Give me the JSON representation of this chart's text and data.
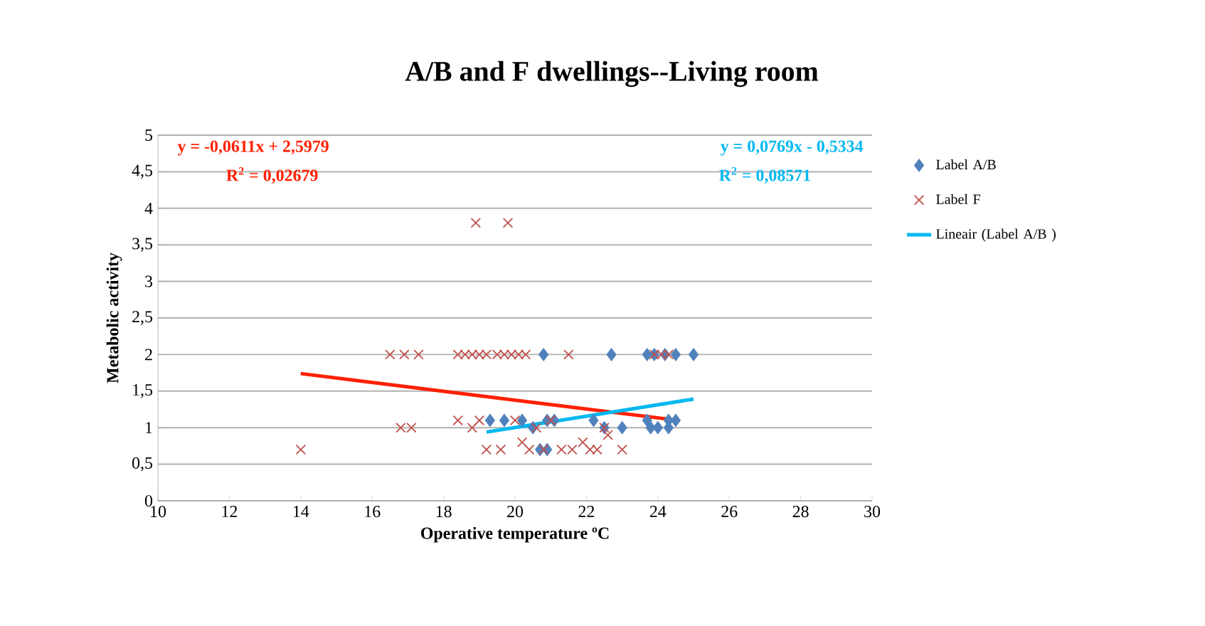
{
  "chart_data": {
    "type": "scatter",
    "title": "A/B and F dwellings--Living room",
    "xlabel": "Operative temperature ºC",
    "ylabel": "Metabolic activity",
    "xlim": [
      10,
      30
    ],
    "xticks": [
      10,
      12,
      14,
      16,
      18,
      20,
      22,
      24,
      26,
      28,
      30
    ],
    "ylim": [
      0,
      5
    ],
    "yticks": [
      0,
      {
        "value": 0.5,
        "label": "0,5"
      },
      1,
      {
        "value": 1.5,
        "label": "1,5"
      },
      2,
      {
        "value": 2.5,
        "label": "2,5"
      },
      3,
      {
        "value": 3.5,
        "label": "3,5"
      },
      4,
      {
        "value": 4.5,
        "label": "4,5"
      },
      5
    ],
    "grid": "y",
    "legend": "right",
    "series": [
      {
        "name": "Label A/B",
        "color": "#4f81bd",
        "marker": "diamond",
        "x": [
          20.8,
          22.7,
          23.7,
          23.9,
          24.2,
          24.5,
          25.0,
          19.3,
          19.7,
          20.2,
          20.9,
          21.1,
          22.2,
          23.7,
          24.3,
          24.5,
          20.5,
          22.5,
          23.0,
          23.8,
          24.0,
          24.3,
          20.7,
          20.9
        ],
        "values": [
          2,
          2,
          2,
          2,
          2,
          2,
          2,
          1.1,
          1.1,
          1.1,
          1.1,
          1.1,
          1.1,
          1.1,
          1.1,
          1.1,
          1,
          1,
          1,
          1,
          1,
          1,
          0.7,
          0.7
        ]
      },
      {
        "name": "Label F",
        "color": "#c0504d",
        "marker": "cross",
        "x": [
          14.0,
          16.8,
          17.1,
          16.5,
          16.9,
          17.3,
          18.4,
          18.8,
          19.0,
          19.2,
          19.6,
          20.0,
          20.2,
          20.4,
          20.6,
          20.8,
          21.0,
          21.3,
          21.6,
          21.9,
          22.1,
          22.3,
          22.6,
          23.0,
          22.5,
          18.9,
          19.8,
          18.4,
          18.6,
          18.8,
          19.0,
          19.2,
          19.5,
          19.7,
          19.9,
          20.1,
          20.3,
          21.5,
          23.9,
          24.1,
          24.3
        ],
        "values": [
          0.7,
          1,
          1,
          2,
          2,
          2,
          1.1,
          1,
          1.1,
          0.7,
          0.7,
          1.1,
          0.8,
          0.7,
          1,
          0.7,
          1.1,
          0.7,
          0.7,
          0.8,
          0.7,
          0.7,
          0.9,
          0.7,
          1,
          3.8,
          3.8,
          2,
          2,
          2,
          2,
          2,
          2,
          2,
          2,
          2,
          2,
          2,
          2,
          2,
          2
        ]
      },
      {
        "type": "line",
        "color": "#ff2000",
        "x": [
          14.0,
          24.4
        ],
        "values": [
          1.74,
          1.11
        ]
      },
      {
        "type": "line",
        "name": "Lineair (Label A/B )",
        "color": "#00b8f0",
        "x": [
          19.2,
          25.0
        ],
        "values": [
          0.94,
          1.39
        ]
      }
    ],
    "annotations": [
      "y = -0,0611x + 2,5979",
      "R$^{2}$ = 0,02679",
      "y = 0,0769x - 0,5334",
      "R$^{2}$ = 0,08571"
    ]
  }
}
